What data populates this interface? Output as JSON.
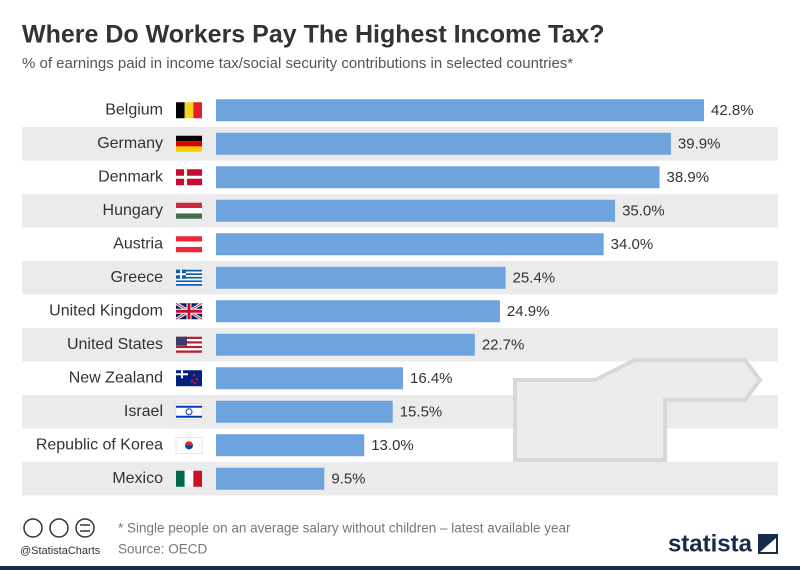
{
  "chart_data": {
    "type": "bar",
    "orientation": "horizontal",
    "title": "Where Do Workers Pay The Highest Income Tax?",
    "subtitle": "% of earnings paid in income tax/social security contributions in selected countries*",
    "categories": [
      "Belgium",
      "Germany",
      "Denmark",
      "Hungary",
      "Austria",
      "Greece",
      "United Kingdom",
      "United States",
      "New Zealand",
      "Israel",
      "Republic of Korea",
      "Mexico"
    ],
    "values": [
      42.8,
      39.9,
      38.9,
      35.0,
      34.0,
      25.4,
      24.9,
      22.7,
      16.4,
      15.5,
      13.0,
      9.5
    ],
    "value_labels": [
      "42.8%",
      "39.9%",
      "38.9%",
      "35.0%",
      "34.0%",
      "25.4%",
      "24.9%",
      "22.7%",
      "16.4%",
      "15.5%",
      "13.0%",
      "9.5%"
    ],
    "color": "#6fa3dd",
    "note": "* Single people on an average salary without children – latest available year",
    "source": "Source: OECD",
    "credit": "@StatistaCharts",
    "brand": "statista"
  }
}
